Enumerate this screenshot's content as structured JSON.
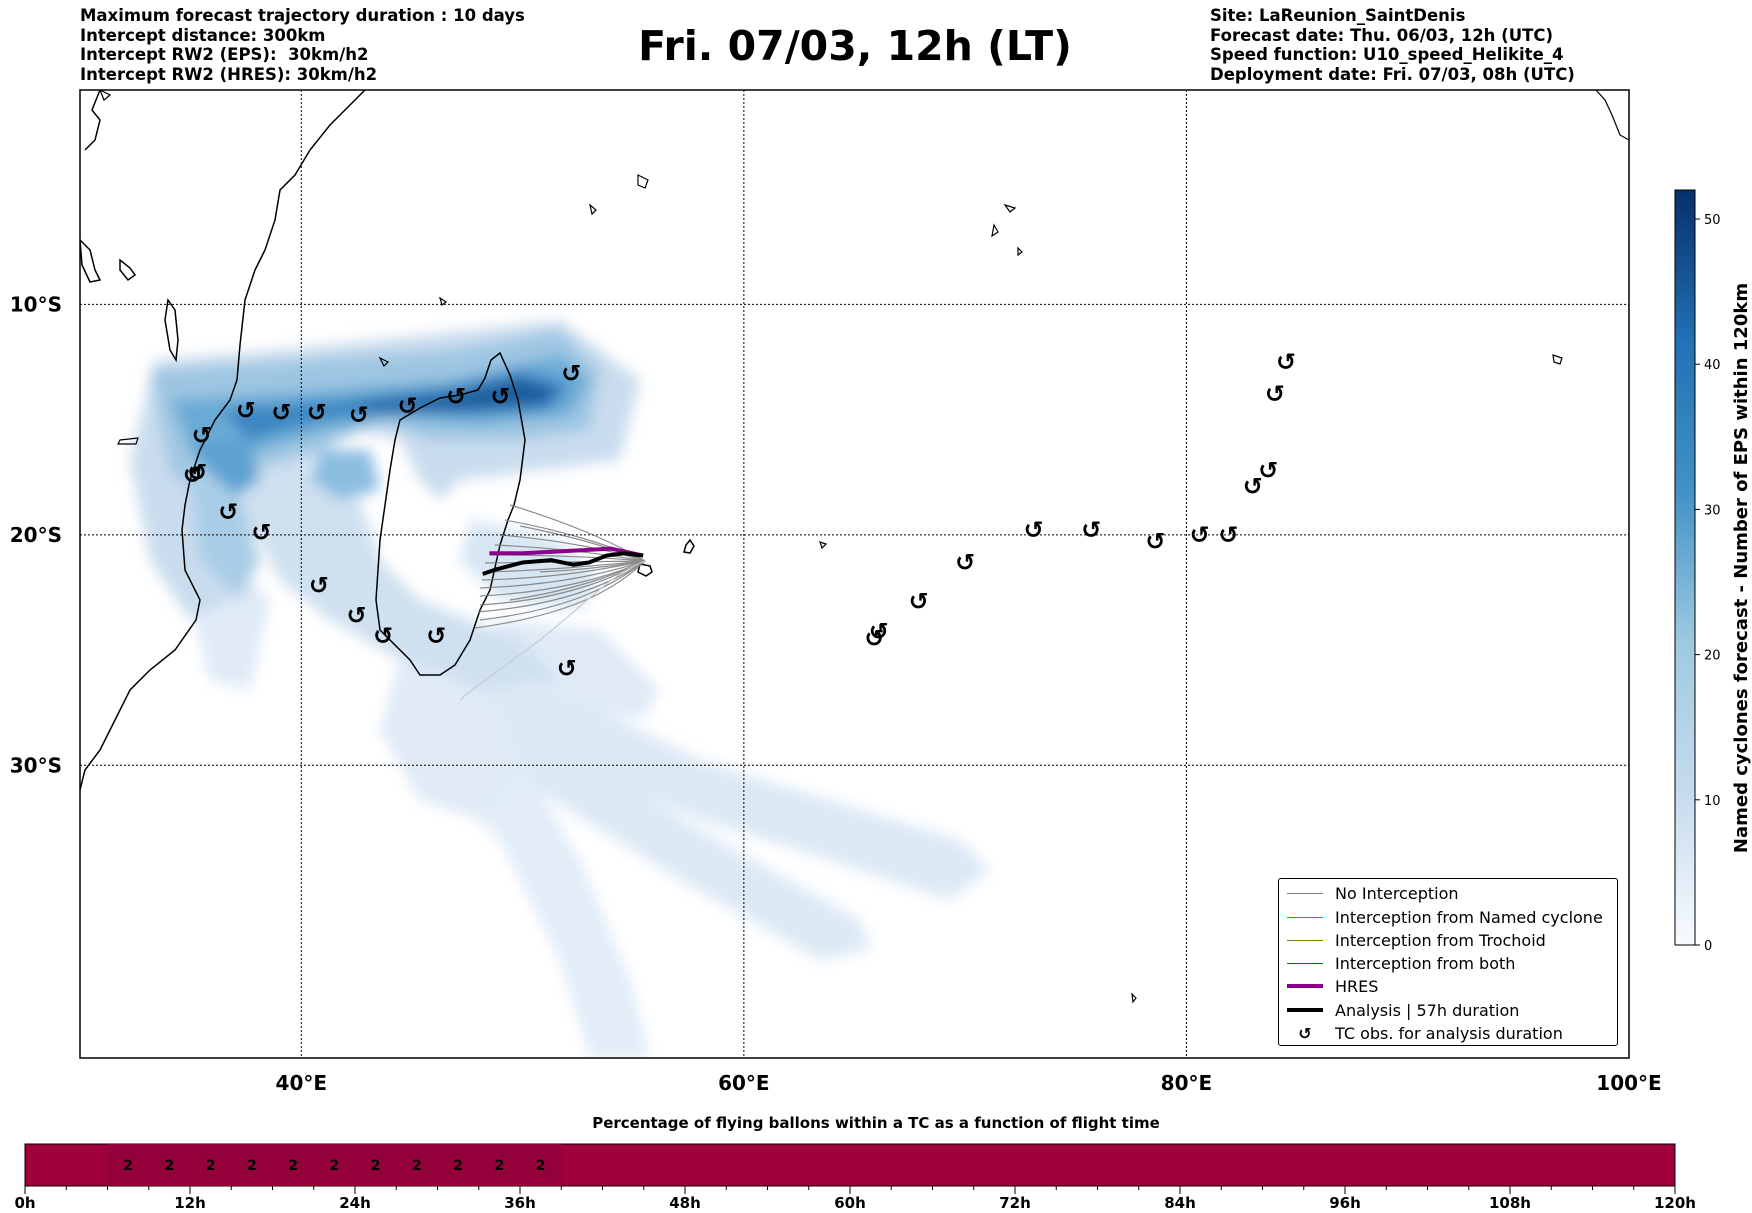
{
  "header": {
    "left_lines": [
      "Maximum forecast trajectory duration : 10 days",
      "Intercept distance: 300km",
      "Intercept RW2 (EPS):  30km/h2",
      "Intercept RW2 (HRES): 30km/h2"
    ],
    "title": "Fri. 07/03, 12h (LT)",
    "right_lines": [
      "Site: LaReunion_SaintDenis",
      "Forecast date: Thu. 06/03, 12h (UTC)",
      "Speed function: U10_speed_Helikite_4",
      "Deployment date: Fri. 07/03, 08h (UTC)"
    ]
  },
  "map": {
    "lon_labels": [
      "40°E",
      "60°E",
      "80°E",
      "100°E"
    ],
    "lat_labels": [
      "10°S",
      "20°S",
      "30°S"
    ],
    "lon_ticks": [
      40,
      60,
      80,
      100
    ],
    "lat_ticks": [
      -10,
      -20,
      -30
    ],
    "extent": {
      "lon_min": 30,
      "lon_max": 100,
      "lat_min": -42.7,
      "lat_max": -0.7
    },
    "density_color": "#08306b",
    "hres_color": "#8b008b",
    "analysis_color": "#000000",
    "no_interception_color": "#808080",
    "release_site": {
      "lon": 55.45,
      "lat": -20.9
    },
    "tc_obs": [
      {
        "lon": 52.2,
        "lat": -13.0
      },
      {
        "lon": 49.0,
        "lat": -14.0
      },
      {
        "lon": 47.0,
        "lat": -14.0
      },
      {
        "lon": 44.8,
        "lat": -14.4
      },
      {
        "lon": 42.6,
        "lat": -14.8
      },
      {
        "lon": 40.7,
        "lat": -14.7
      },
      {
        "lon": 39.1,
        "lat": -14.7
      },
      {
        "lon": 37.5,
        "lat": -14.6
      },
      {
        "lon": 35.5,
        "lat": -15.7
      },
      {
        "lon": 35.3,
        "lat": -17.3
      },
      {
        "lon": 35.1,
        "lat": -17.4
      },
      {
        "lon": 36.7,
        "lat": -19.0
      },
      {
        "lon": 38.2,
        "lat": -19.9
      },
      {
        "lon": 40.8,
        "lat": -22.2
      },
      {
        "lon": 42.5,
        "lat": -23.5
      },
      {
        "lon": 43.7,
        "lat": -24.4
      },
      {
        "lon": 46.1,
        "lat": -24.4
      },
      {
        "lon": 52.0,
        "lat": -25.8
      },
      {
        "lon": 65.9,
        "lat": -24.5
      },
      {
        "lon": 66.1,
        "lat": -24.2
      },
      {
        "lon": 67.9,
        "lat": -22.9
      },
      {
        "lon": 70.0,
        "lat": -21.2
      },
      {
        "lon": 73.1,
        "lat": -19.8
      },
      {
        "lon": 75.7,
        "lat": -19.8
      },
      {
        "lon": 78.6,
        "lat": -20.3
      },
      {
        "lon": 80.6,
        "lat": -20.0
      },
      {
        "lon": 81.9,
        "lat": -20.0
      },
      {
        "lon": 83.0,
        "lat": -17.9
      },
      {
        "lon": 83.7,
        "lat": -17.2
      },
      {
        "lon": 84.0,
        "lat": -13.9
      },
      {
        "lon": 84.5,
        "lat": -12.5
      }
    ],
    "hres_track": [
      [
        55.45,
        -20.9
      ],
      [
        54.0,
        -20.6
      ],
      [
        52.0,
        -20.7
      ],
      [
        50.0,
        -20.8
      ],
      [
        48.5,
        -20.8
      ]
    ],
    "analysis_track": [
      [
        55.45,
        -20.9
      ],
      [
        54.6,
        -20.8
      ],
      [
        53.8,
        -20.9
      ],
      [
        53.0,
        -21.2
      ],
      [
        52.3,
        -21.3
      ],
      [
        51.3,
        -21.1
      ],
      [
        50.0,
        -21.2
      ],
      [
        48.8,
        -21.5
      ],
      [
        48.2,
        -21.7
      ]
    ]
  },
  "colorbar": {
    "label": "Named cyclones forecast - Number of EPS within 120km",
    "ticks": [
      0,
      10,
      20,
      30,
      40,
      50
    ],
    "max": 52,
    "color_low": "#f7fbff",
    "color_high": "#08306b"
  },
  "legend": {
    "items": [
      {
        "label": "No Interception",
        "color": "#808080",
        "kind": "thin"
      },
      {
        "label": "Interception from Named cyclone",
        "color": "#ff4500",
        "kind": "thin"
      },
      {
        "label": "Interception from Trochoid",
        "color": "#808000",
        "kind": "thin"
      },
      {
        "label": "Interception from both",
        "color": "#008000",
        "kind": "thin"
      },
      {
        "label": "HRES",
        "color": "#8b008b",
        "kind": "thick"
      },
      {
        "label": "Analysis | 57h duration",
        "color": "#000000",
        "kind": "thick"
      },
      {
        "label": "TC obs. for analysis duration",
        "color": "#000000",
        "kind": "symbol"
      }
    ]
  },
  "timeline": {
    "title": "Percentage of flying ballons within a TC as a function of flight time",
    "tick_labels": [
      "0h",
      "12h",
      "24h",
      "36h",
      "48h",
      "60h",
      "72h",
      "84h",
      "96h",
      "108h",
      "120h"
    ],
    "max_hours": 120,
    "bar_color": "#a0003c",
    "highlight_color": "#94003a",
    "highlight_hours": [
      6,
      39
    ],
    "cell_values": [
      {
        "hour": 7.5,
        "label": "2"
      },
      {
        "hour": 10.5,
        "label": "2"
      },
      {
        "hour": 13.5,
        "label": "2"
      },
      {
        "hour": 16.5,
        "label": "2"
      },
      {
        "hour": 19.5,
        "label": "2"
      },
      {
        "hour": 22.5,
        "label": "2"
      },
      {
        "hour": 25.5,
        "label": "2"
      },
      {
        "hour": 28.5,
        "label": "2"
      },
      {
        "hour": 31.5,
        "label": "2"
      },
      {
        "hour": 34.5,
        "label": "2"
      },
      {
        "hour": 37.5,
        "label": "2"
      }
    ]
  }
}
